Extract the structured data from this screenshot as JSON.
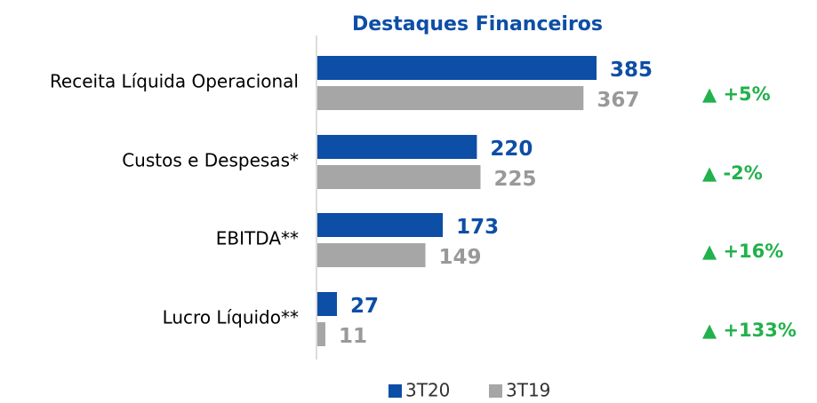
{
  "chart_data": {
    "type": "bar",
    "orientation": "horizontal",
    "title": "Destaques Financeiros",
    "categories": [
      "Receita Líquida Operacional",
      "Custos e Despesas*",
      "EBITDA**",
      "Lucro Líquido**"
    ],
    "series": [
      {
        "name": "3T20",
        "color": "#0d4ea6",
        "values": [
          385,
          220,
          173,
          27
        ]
      },
      {
        "name": "3T19",
        "color": "#a6a6a6",
        "values": [
          367,
          225,
          149,
          11
        ]
      }
    ],
    "annotations": [
      "▲ +5%",
      "▲ -2%",
      "▲ +16%",
      "▲ +133%"
    ],
    "annotation_color": "#22b14c",
    "legend": "bottom"
  }
}
